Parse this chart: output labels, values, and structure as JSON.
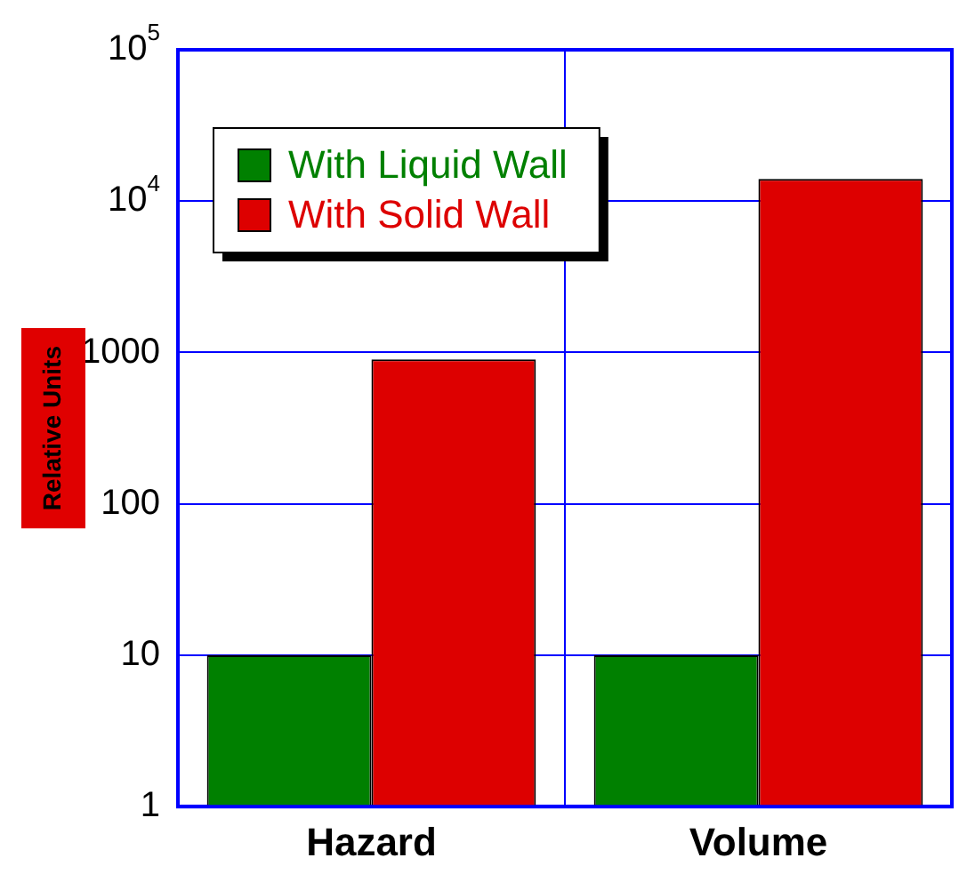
{
  "chart_data": {
    "type": "bar",
    "ylabel": "Relative Units",
    "categories": [
      "Hazard",
      "Volume"
    ],
    "series": [
      {
        "name": "With Liquid Wall",
        "color": "#008000",
        "values": [
          10,
          10
        ]
      },
      {
        "name": "With Solid Wall",
        "color": "#dd0000",
        "values": [
          900,
          14000
        ]
      }
    ],
    "log": true,
    "ylim": [
      1,
      100000
    ],
    "yticks": [
      1,
      10,
      100,
      1000,
      {
        "value": 10000,
        "label": "10$^{4}$"
      },
      {
        "value": 100000,
        "label": "10$^{5}$"
      }
    ],
    "grid": true,
    "legend": "top left"
  }
}
